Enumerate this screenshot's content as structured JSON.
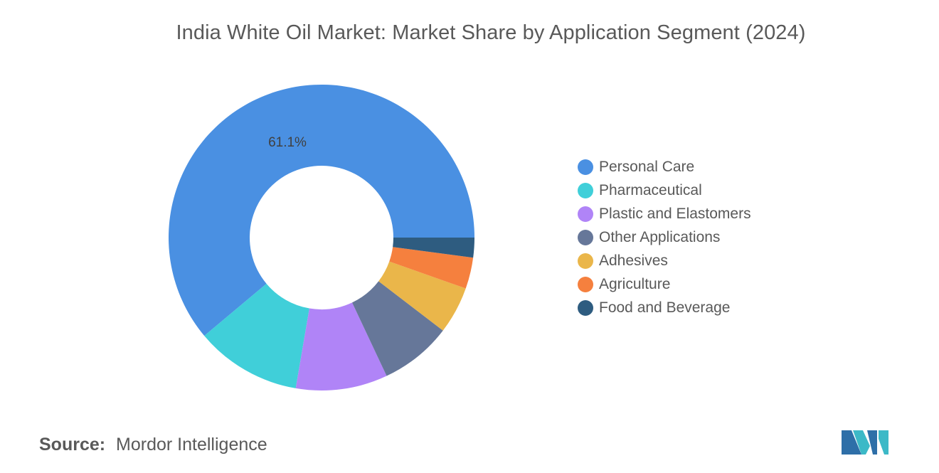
{
  "title": "India White Oil Market: Market Share by Application Segment (2024)",
  "source": {
    "label": "Source:",
    "value": "Mordor Intelligence"
  },
  "chart_data": {
    "type": "pie",
    "donut": true,
    "title": "India White Oil Market: Market Share by Application Segment (2024)",
    "categories": [
      "Personal Care",
      "Pharmaceutical",
      "Plastic and Elastomers",
      "Other Applications",
      "Adhesives",
      "Agriculture",
      "Food and Beverage"
    ],
    "values": [
      61.1,
      11.2,
      9.7,
      7.6,
      5.0,
      3.3,
      2.1
    ],
    "colors": [
      "#4A90E2",
      "#40CFD9",
      "#B084F7",
      "#667799",
      "#EAB64A",
      "#F5803E",
      "#2E5C80"
    ],
    "data_labels": [
      "61.1%",
      "",
      "",
      "",
      "",
      "",
      ""
    ],
    "legend_position": "right"
  }
}
